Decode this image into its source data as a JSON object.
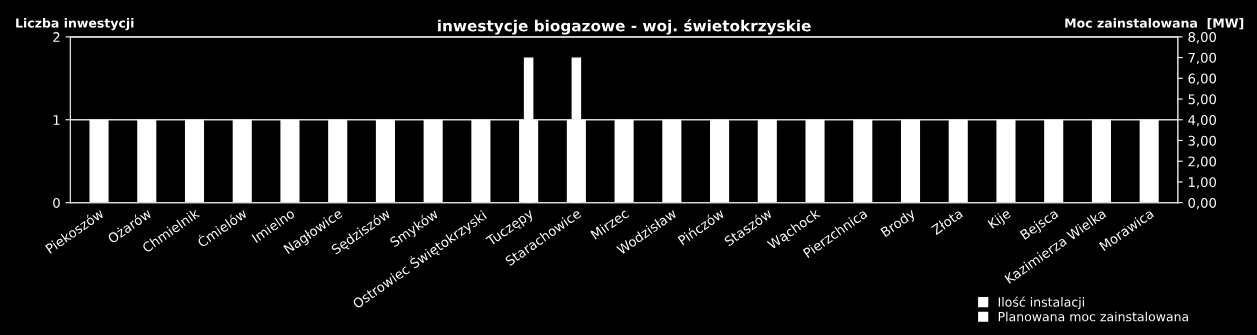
{
  "chart_data": {
    "type": "bar",
    "title": "inwestycje biogazowe - woj. świetokrzyskie",
    "ylabel": "Liczba inwestycji",
    "y2label": "Moc zainstalowana  [MW]",
    "categories": [
      "Piekoszów",
      "Ożarów",
      "Chmielnik",
      "Ćmielów",
      "Imielno",
      "Nagłowice",
      "Sędziszów",
      "Smyków",
      "Ostrowiec Świętokrzyski",
      "Tuczępy",
      "Starachowice",
      "Mirzec",
      "Wodzisław",
      "Pińczów",
      "Staszów",
      "Wąchock",
      "Pierzchnica",
      "Brody",
      "Złota",
      "Kije",
      "Bejsca",
      "Kazimierza Wielka",
      "Morawica"
    ],
    "series": [
      {
        "name": "Ilość instalacji",
        "color": "#ffffff",
        "values": [
          1,
          1,
          1,
          1,
          1,
          1,
          1,
          1,
          1,
          1,
          1,
          1,
          1,
          1,
          1,
          1,
          1,
          1,
          1,
          1,
          1,
          1,
          1
        ]
      },
      {
        "name": "Planowana moc zainstalowana",
        "color": "#ffffff",
        "axis": "y2",
        "values": [
          null,
          null,
          null,
          null,
          null,
          null,
          null,
          null,
          null,
          7.0,
          7.0,
          null,
          null,
          null,
          null,
          null,
          null,
          null,
          null,
          null,
          null,
          null,
          null
        ]
      }
    ],
    "ylim": [
      0,
      2
    ],
    "yticks": [
      0,
      1,
      2
    ],
    "y2lim": [
      0,
      8
    ],
    "y2ticks": [
      {
        "value": 0,
        "label": "0,00"
      },
      {
        "value": 1,
        "label": "1,00"
      },
      {
        "value": 2,
        "label": "2,00"
      },
      {
        "value": 3,
        "label": "3,00"
      },
      {
        "value": 4,
        "label": "4,00"
      },
      {
        "value": 5,
        "label": "5,00"
      },
      {
        "value": 6,
        "label": "6,00"
      },
      {
        "value": 7,
        "label": "7,00"
      },
      {
        "value": 8,
        "label": "8,00"
      }
    ],
    "grid": "y",
    "legend": "bottom right"
  }
}
